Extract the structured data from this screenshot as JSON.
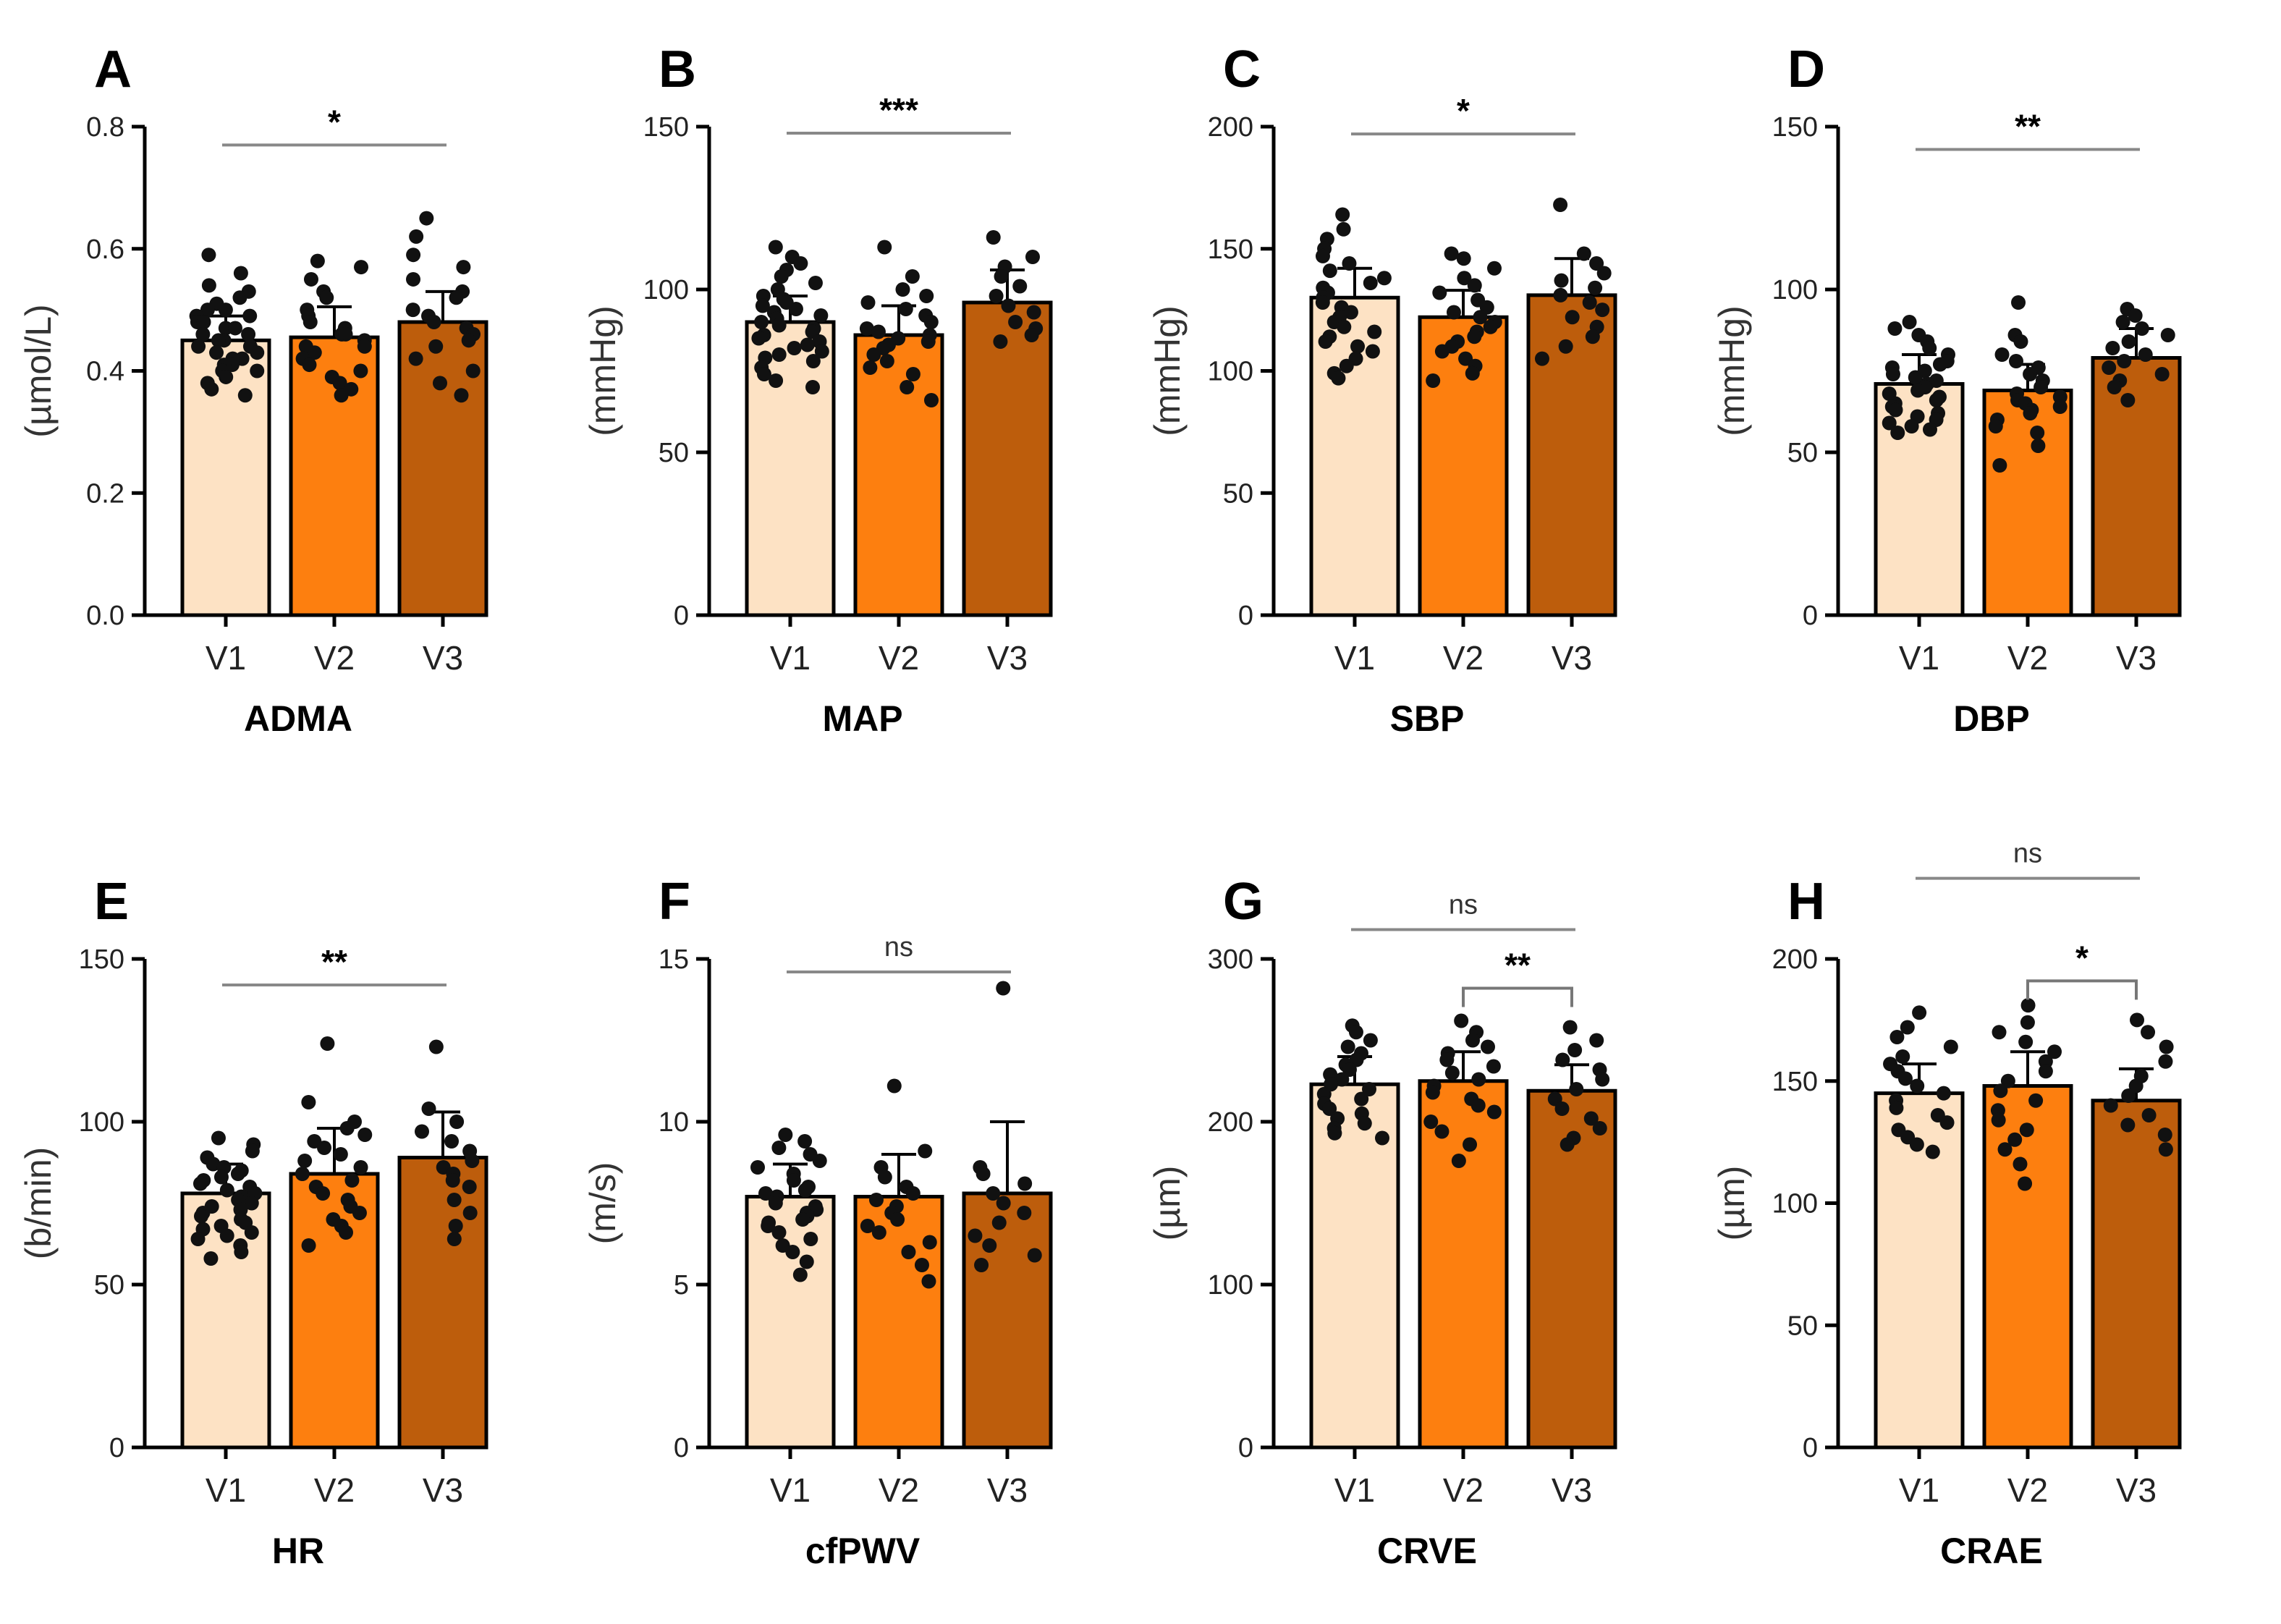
{
  "figure": {
    "background": "#ffffff",
    "bar_colors": [
      "#fde2c4",
      "#fd7f0f",
      "#bd5d0c"
    ],
    "dot_color": "#111111"
  },
  "chart_data": [
    {
      "type": "bar",
      "panel": "A",
      "xlabel": "ADMA",
      "ylabel": "(µmol/L)",
      "categories": [
        "V1",
        "V2",
        "V3"
      ],
      "values": [
        0.45,
        0.455,
        0.48
      ],
      "errors": [
        0.04,
        0.05,
        0.05
      ],
      "ylim": [
        0,
        0.8
      ],
      "yticks": [
        "0.0",
        "0.2",
        "0.4",
        "0.6",
        "0.8"
      ],
      "ytick_values": [
        0,
        0.2,
        0.4,
        0.6,
        0.8
      ],
      "points": [
        [
          0.59,
          0.56,
          0.54,
          0.53,
          0.52,
          0.51,
          0.5,
          0.5,
          0.49,
          0.49,
          0.48,
          0.48,
          0.47,
          0.47,
          0.46,
          0.46,
          0.45,
          0.45,
          0.44,
          0.44,
          0.43,
          0.43,
          0.42,
          0.42,
          0.41,
          0.41,
          0.4,
          0.4,
          0.39,
          0.38,
          0.37,
          0.36
        ],
        [
          0.58,
          0.57,
          0.55,
          0.53,
          0.52,
          0.5,
          0.49,
          0.48,
          0.47,
          0.46,
          0.45,
          0.44,
          0.43,
          0.42,
          0.41,
          0.4,
          0.39,
          0.38,
          0.37,
          0.36,
          0.44,
          0.46
        ],
        [
          0.65,
          0.62,
          0.59,
          0.57,
          0.55,
          0.53,
          0.52,
          0.5,
          0.49,
          0.48,
          0.47,
          0.46,
          0.45,
          0.44,
          0.42,
          0.4,
          0.38,
          0.36
        ]
      ],
      "comparisons": [
        {
          "from": 0,
          "to": 2,
          "label": "*",
          "y": 0.77,
          "bracket": false
        }
      ]
    },
    {
      "type": "bar",
      "panel": "B",
      "xlabel": "MAP",
      "ylabel": "(mmHg)",
      "categories": [
        "V1",
        "V2",
        "V3"
      ],
      "values": [
        90,
        86,
        96
      ],
      "errors": [
        8,
        9,
        10
      ],
      "ylim": [
        0,
        150
      ],
      "yticks": [
        "0",
        "50",
        "100",
        "150"
      ],
      "ytick_values": [
        0,
        50,
        100,
        150
      ],
      "points": [
        [
          113,
          110,
          108,
          106,
          104,
          102,
          100,
          98,
          97,
          96,
          95,
          94,
          93,
          92,
          91,
          90,
          89,
          88,
          87,
          86,
          85,
          84,
          83,
          82,
          81,
          80,
          79,
          78,
          76,
          74,
          72,
          70
        ],
        [
          113,
          104,
          100,
          98,
          96,
          94,
          92,
          90,
          88,
          87,
          86,
          85,
          84,
          83,
          82,
          80,
          78,
          76,
          74,
          70,
          66
        ],
        [
          116,
          110,
          107,
          104,
          101,
          98,
          95,
          93,
          90,
          88,
          86,
          84
        ]
      ],
      "comparisons": [
        {
          "from": 0,
          "to": 2,
          "label": "***",
          "y": 148,
          "bracket": false
        }
      ]
    },
    {
      "type": "bar",
      "panel": "C",
      "xlabel": "SBP",
      "ylabel": "(mmHg)",
      "categories": [
        "V1",
        "V2",
        "V3"
      ],
      "values": [
        130,
        122,
        131
      ],
      "errors": [
        12,
        11,
        15
      ],
      "ylim": [
        0,
        200
      ],
      "yticks": [
        "0",
        "50",
        "100",
        "150",
        "200"
      ],
      "ytick_values": [
        0,
        50,
        100,
        150,
        200
      ],
      "points": [
        [
          164,
          158,
          154,
          150,
          147,
          144,
          141,
          138,
          136,
          134,
          132,
          130,
          128,
          126,
          124,
          122,
          120,
          118,
          116,
          114,
          112,
          110,
          108,
          105,
          102,
          99,
          97
        ],
        [
          148,
          146,
          142,
          138,
          135,
          132,
          129,
          126,
          124,
          122,
          120,
          118,
          116,
          114,
          112,
          110,
          108,
          105,
          102,
          99,
          96
        ],
        [
          168,
          148,
          144,
          140,
          137,
          134,
          131,
          128,
          125,
          122,
          118,
          114,
          110,
          105
        ]
      ],
      "comparisons": [
        {
          "from": 0,
          "to": 2,
          "label": "*",
          "y": 197,
          "bracket": false
        }
      ]
    },
    {
      "type": "bar",
      "panel": "D",
      "xlabel": "DBP",
      "ylabel": "(mmHg)",
      "categories": [
        "V1",
        "V2",
        "V3"
      ],
      "values": [
        71,
        69,
        79
      ],
      "errors": [
        9,
        8,
        9
      ],
      "ylim": [
        0,
        150
      ],
      "yticks": [
        "0",
        "50",
        "100",
        "150"
      ],
      "ytick_values": [
        0,
        50,
        100,
        150
      ],
      "points": [
        [
          90,
          88,
          86,
          84,
          82,
          80,
          78,
          77,
          76,
          75,
          74,
          73,
          72,
          71,
          70,
          69,
          68,
          67,
          66,
          65,
          64,
          63,
          62,
          61,
          60,
          59,
          58,
          57,
          56
        ],
        [
          96,
          86,
          84,
          80,
          78,
          76,
          74,
          72,
          70,
          68,
          67,
          66,
          65,
          64,
          63,
          62,
          60,
          58,
          56,
          52,
          46
        ],
        [
          94,
          92,
          90,
          88,
          86,
          84,
          82,
          80,
          78,
          76,
          74,
          72,
          70,
          66
        ]
      ],
      "comparisons": [
        {
          "from": 0,
          "to": 2,
          "label": "**",
          "y": 143,
          "bracket": false
        }
      ]
    },
    {
      "type": "bar",
      "panel": "E",
      "xlabel": "HR",
      "ylabel": "(b/min)",
      "categories": [
        "V1",
        "V2",
        "V3"
      ],
      "values": [
        78,
        84,
        89
      ],
      "errors": [
        9,
        14,
        14
      ],
      "ylim": [
        0,
        150
      ],
      "yticks": [
        "0",
        "50",
        "100",
        "150"
      ],
      "ytick_values": [
        0,
        50,
        100,
        150
      ],
      "points": [
        [
          95,
          93,
          91,
          89,
          87,
          86,
          85,
          84,
          83,
          82,
          81,
          80,
          79,
          78,
          77,
          76,
          75,
          74,
          73,
          72,
          71,
          70,
          69,
          68,
          67,
          66,
          65,
          64,
          62,
          60,
          58
        ],
        [
          124,
          106,
          100,
          98,
          96,
          94,
          92,
          90,
          88,
          86,
          84,
          82,
          80,
          78,
          76,
          74,
          72,
          70,
          68,
          66,
          62
        ],
        [
          123,
          104,
          100,
          97,
          94,
          91,
          88,
          86,
          84,
          82,
          80,
          76,
          72,
          68,
          64
        ]
      ],
      "comparisons": [
        {
          "from": 0,
          "to": 2,
          "label": "**",
          "y": 142,
          "bracket": false
        }
      ]
    },
    {
      "type": "bar",
      "panel": "F",
      "xlabel": "cfPWV",
      "ylabel": "(m/s)",
      "categories": [
        "V1",
        "V2",
        "V3"
      ],
      "values": [
        7.7,
        7.7,
        7.8
      ],
      "errors": [
        1.0,
        1.3,
        2.2
      ],
      "ylim": [
        0,
        15
      ],
      "yticks": [
        "0",
        "5",
        "10",
        "15"
      ],
      "ytick_values": [
        0,
        5,
        10,
        15
      ],
      "points": [
        [
          9.6,
          9.4,
          9.2,
          9.0,
          8.8,
          8.6,
          8.4,
          8.2,
          8.0,
          7.9,
          7.8,
          7.7,
          7.6,
          7.5,
          7.4,
          7.3,
          7.2,
          7.1,
          7.0,
          6.9,
          6.8,
          6.6,
          6.4,
          6.2,
          6.0,
          5.7,
          5.3
        ],
        [
          11.1,
          9.1,
          8.6,
          8.3,
          8.0,
          7.8,
          7.6,
          7.4,
          7.2,
          7.0,
          6.8,
          6.6,
          6.3,
          6.0,
          5.6,
          5.1
        ],
        [
          14.1,
          8.6,
          8.4,
          8.1,
          7.8,
          7.5,
          7.2,
          6.9,
          6.5,
          6.2,
          5.9,
          5.6
        ]
      ],
      "comparisons": [
        {
          "from": 0,
          "to": 2,
          "label": "ns",
          "y": 14.6,
          "bracket": false
        }
      ]
    },
    {
      "type": "bar",
      "panel": "G",
      "xlabel": "CRVE",
      "ylabel": "(µm)",
      "categories": [
        "V1",
        "V2",
        "V3"
      ],
      "values": [
        223,
        225,
        219
      ],
      "errors": [
        17,
        18,
        16
      ],
      "ylim": [
        0,
        300
      ],
      "yticks": [
        "0",
        "100",
        "200",
        "300"
      ],
      "ytick_values": [
        0,
        100,
        200,
        300
      ],
      "points": [
        [
          259,
          255,
          250,
          246,
          242,
          238,
          235,
          232,
          229,
          226,
          223,
          220,
          217,
          214,
          211,
          208,
          205,
          202,
          199,
          196,
          193,
          190
        ],
        [
          262,
          255,
          250,
          246,
          242,
          238,
          234,
          230,
          226,
          222,
          218,
          214,
          210,
          206,
          200,
          194,
          186,
          176
        ],
        [
          258,
          250,
          244,
          238,
          232,
          226,
          220,
          214,
          208,
          202,
          196,
          190,
          186
        ]
      ],
      "comparisons": [
        {
          "from": 0,
          "to": 2,
          "label": "ns",
          "y": 318,
          "bracket": false
        },
        {
          "from": 1,
          "to": 2,
          "label": "**",
          "y": 282,
          "bracket": true
        }
      ]
    },
    {
      "type": "bar",
      "panel": "H",
      "xlabel": "CRAE",
      "ylabel": "(µm)",
      "categories": [
        "V1",
        "V2",
        "V3"
      ],
      "values": [
        145,
        148,
        142
      ],
      "errors": [
        12,
        14,
        13
      ],
      "ylim": [
        0,
        200
      ],
      "yticks": [
        "0",
        "50",
        "100",
        "150",
        "200"
      ],
      "ytick_values": [
        0,
        50,
        100,
        150,
        200
      ],
      "points": [
        [
          178,
          172,
          168,
          164,
          160,
          157,
          154,
          151,
          148,
          145,
          142,
          139,
          136,
          133,
          130,
          127,
          124,
          121
        ],
        [
          181,
          174,
          170,
          166,
          162,
          158,
          154,
          150,
          146,
          142,
          138,
          134,
          130,
          126,
          122,
          116,
          108
        ],
        [
          175,
          170,
          164,
          158,
          152,
          148,
          144,
          140,
          136,
          132,
          128,
          122
        ]
      ],
      "comparisons": [
        {
          "from": 0,
          "to": 2,
          "label": "ns",
          "y": 233,
          "bracket": false
        },
        {
          "from": 1,
          "to": 2,
          "label": "*",
          "y": 191,
          "bracket": true
        }
      ]
    }
  ]
}
